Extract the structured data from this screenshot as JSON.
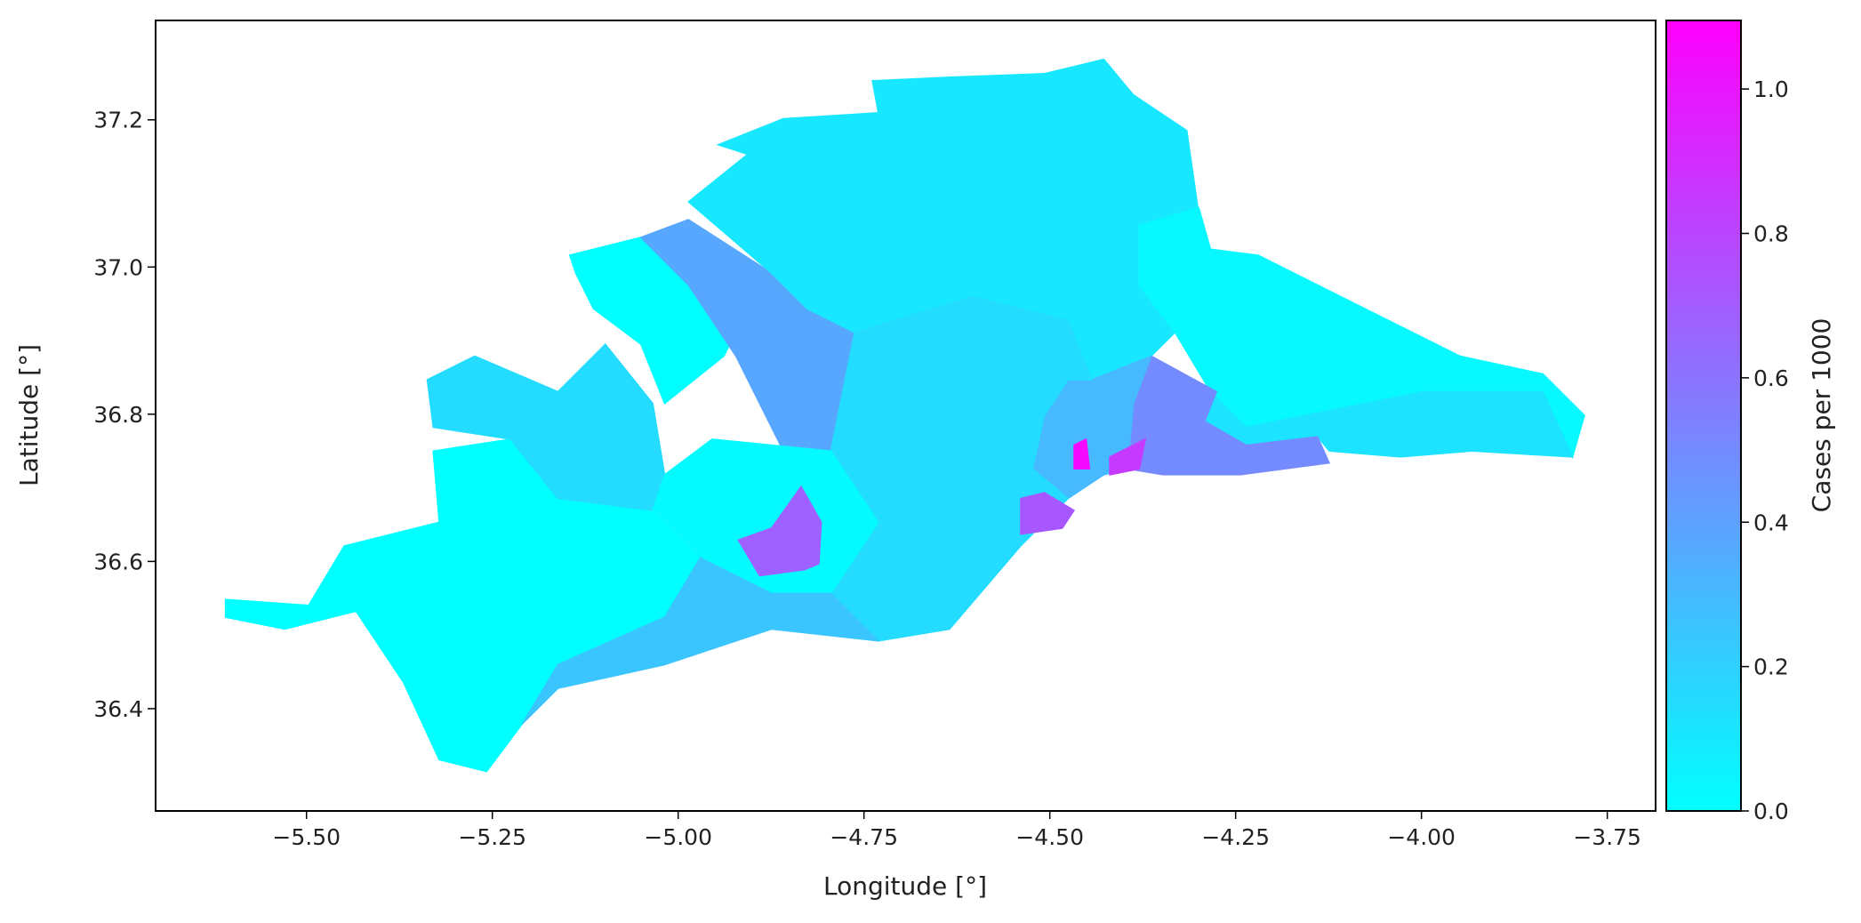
{
  "chart_data": {
    "type": "choropleth",
    "xlabel": "Longitude [°]",
    "ylabel": "Latitude [°]",
    "xlim": [
      -5.703,
      -3.685
    ],
    "ylim": [
      36.261,
      37.335
    ],
    "xticks": [
      {
        "value": -5.5,
        "label": "−5.50"
      },
      {
        "value": -5.25,
        "label": "−5.25"
      },
      {
        "value": -5.0,
        "label": "−5.00"
      },
      {
        "value": -4.75,
        "label": "−4.75"
      },
      {
        "value": -4.5,
        "label": "−4.50"
      },
      {
        "value": -4.25,
        "label": "−4.25"
      },
      {
        "value": -4.0,
        "label": "−4.00"
      },
      {
        "value": -3.75,
        "label": "−3.75"
      }
    ],
    "yticks": [
      36.4,
      36.6,
      36.8,
      {
        "value": 37.0,
        "label": "37.0"
      },
      37.2
    ],
    "colormap": "cool",
    "clim": [
      0,
      1.095
    ],
    "cticks": [
      {
        "value": 0,
        "label": "0.0"
      },
      0.2,
      0.4,
      0.6,
      0.8,
      {
        "value": 1.0,
        "label": "1.0"
      }
    ],
    "colorbar_label": "Cases per 1000",
    "values": [
      0.0,
      0.15,
      0.0,
      0.38,
      0.1,
      0.03,
      0.12,
      0.5,
      0.3,
      0.15,
      0.02,
      0.25,
      0.68,
      0.72,
      1.05,
      0.85
    ]
  }
}
